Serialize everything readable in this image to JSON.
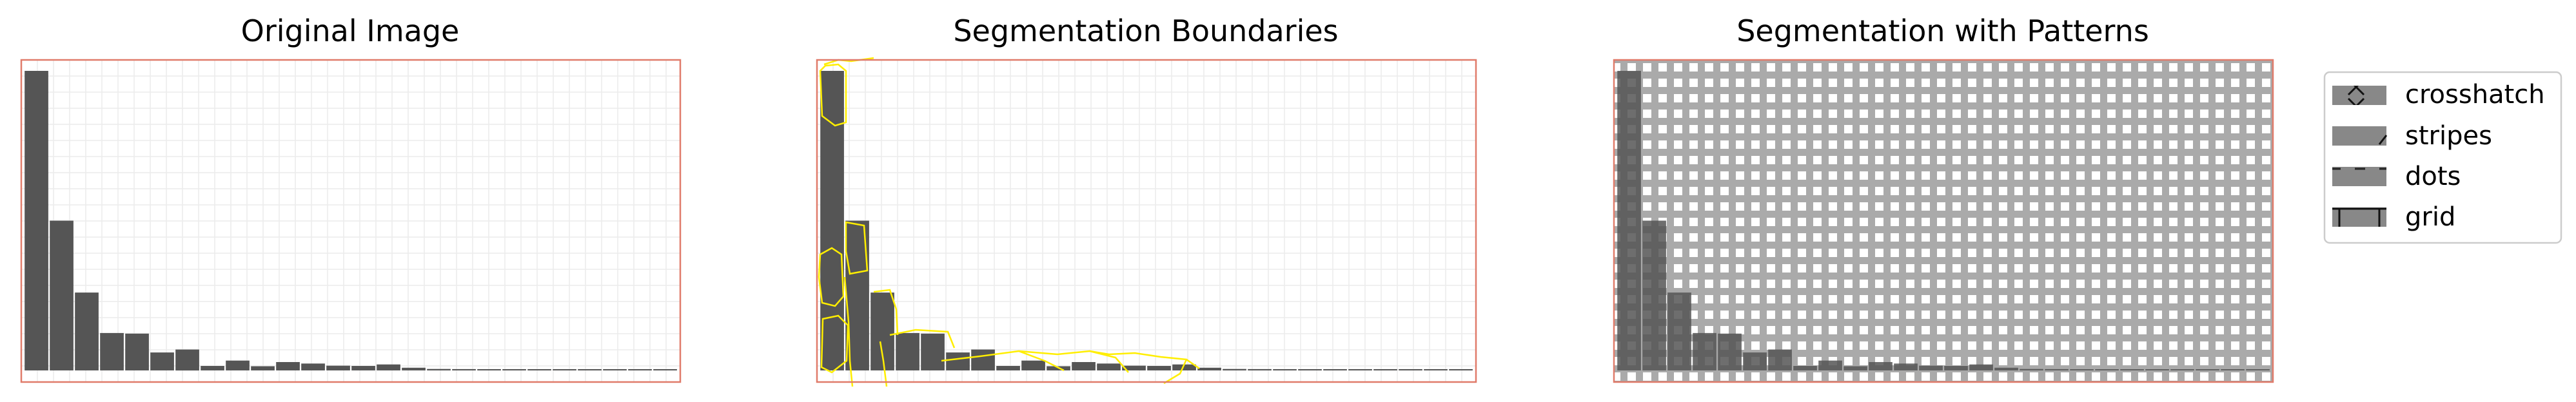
{
  "chart_data": [
    {
      "type": "bar",
      "title": "Original Image",
      "values": [
        100,
        50,
        26,
        12.5,
        12.3,
        6,
        7,
        1.5,
        3.3,
        1.4,
        2.8,
        2.3,
        1.6,
        1.5,
        2.0,
        0.9,
        0.5,
        0.45,
        0.4,
        0.4,
        0.35,
        0.3,
        0.3,
        0.3,
        0.3,
        0.3
      ],
      "ylim": [
        0,
        100
      ],
      "grid": true,
      "overlay": "none"
    },
    {
      "type": "bar",
      "title": "Segmentation Boundaries",
      "values": [
        100,
        50,
        26,
        12.5,
        12.3,
        6,
        7,
        1.5,
        3.3,
        1.4,
        2.8,
        2.3,
        1.6,
        1.5,
        2.0,
        0.9,
        0.5,
        0.45,
        0.4,
        0.4,
        0.35,
        0.3,
        0.3,
        0.3,
        0.3,
        0.3
      ],
      "ylim": [
        0,
        100
      ],
      "grid": true,
      "overlay": "segmentation-boundaries"
    },
    {
      "type": "bar",
      "title": "Segmentation with Patterns",
      "values": [
        100,
        50,
        26,
        12.5,
        12.3,
        6,
        7,
        1.5,
        3.3,
        1.4,
        2.8,
        2.3,
        1.6,
        1.5,
        2.0,
        0.9,
        0.5,
        0.45,
        0.4,
        0.4,
        0.35,
        0.3,
        0.3,
        0.3,
        0.3,
        0.3
      ],
      "ylim": [
        0,
        100
      ],
      "grid": false,
      "overlay": "patterns",
      "legend": {
        "position": "right",
        "entries": [
          {
            "label": "crosshatch",
            "pattern": "crosshatch"
          },
          {
            "label": "stripes",
            "pattern": "stripes"
          },
          {
            "label": "dots",
            "pattern": "dots"
          },
          {
            "label": "grid",
            "pattern": "grid"
          }
        ]
      }
    }
  ],
  "colors": {
    "bar": "#555555",
    "frame": "#e07b6a",
    "grid": "#ececec",
    "boundary": "#ffee00",
    "pattern_fill": "#aaaaaa",
    "legend_swatch": "#888888"
  }
}
